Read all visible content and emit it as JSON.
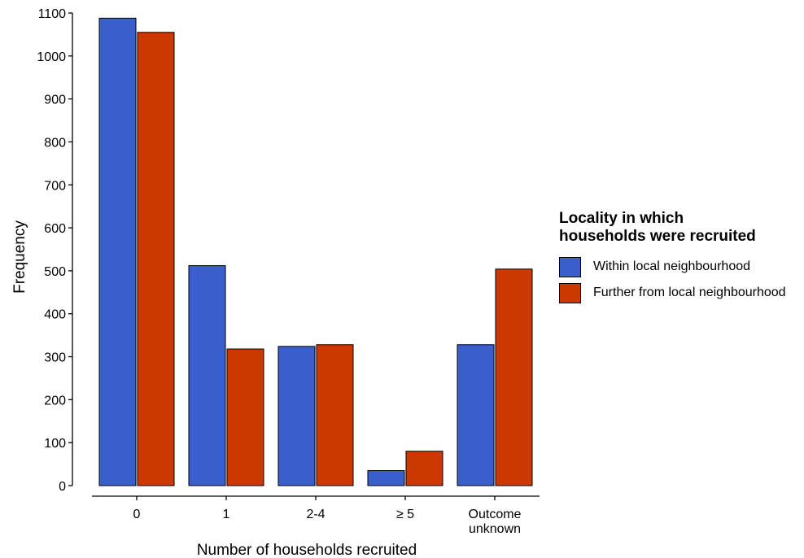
{
  "chart_data": {
    "type": "bar",
    "categories": [
      "0",
      "1",
      "2-4",
      "≥ 5",
      "Outcome unknown"
    ],
    "category_label_lines": [
      [
        "0"
      ],
      [
        "1"
      ],
      [
        "2-4"
      ],
      [
        "≥ 5"
      ],
      [
        "Outcome",
        "unknown"
      ]
    ],
    "series": [
      {
        "name": "Within local neighbourhood",
        "color": "#3a5fcd",
        "values": [
          1088,
          512,
          324,
          35,
          328
        ]
      },
      {
        "name": "Further from local neighbourhood",
        "color": "#cd3700",
        "values": [
          1055,
          318,
          328,
          80,
          504
        ]
      }
    ],
    "xlabel": "Number of households recruited",
    "ylabel": "Frequency",
    "ylim": [
      0,
      1100
    ],
    "yticks": [
      0,
      100,
      200,
      300,
      400,
      500,
      600,
      700,
      800,
      900,
      1000,
      1100
    ],
    "grid": false,
    "legend_position": "right",
    "legend_title": [
      "Locality in which",
      "households were recruited"
    ]
  }
}
